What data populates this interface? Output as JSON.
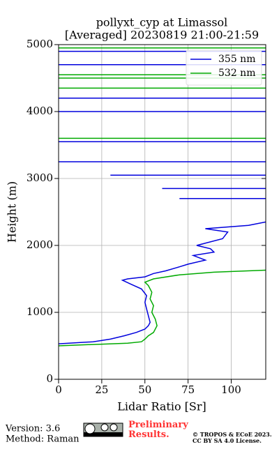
{
  "chart_data": {
    "type": "line",
    "title": "pollyxt_cyp at Limassol",
    "subtitle": "[Averaged] 20230819 21:00-21:59",
    "x_label": "Lidar Ratio [Sr]",
    "y_label": "Height (m)",
    "xlim": [
      0,
      120
    ],
    "xticks": [
      0,
      25,
      50,
      75,
      100
    ],
    "ylim": [
      0,
      5000
    ],
    "yticks": [
      0,
      1000,
      2000,
      3000,
      4000,
      5000
    ],
    "grid": true,
    "legend": "upper right",
    "series": [
      {
        "name": "355 nm",
        "color": "#0000dd",
        "x": [
          0,
          20,
          30,
          38,
          45,
          50,
          52,
          53,
          52,
          51,
          50,
          51,
          48,
          42,
          37,
          40,
          50,
          55,
          62,
          70,
          75,
          85,
          78,
          90,
          88,
          80,
          95,
          98,
          85,
          110,
          120,
          null,
          70,
          120,
          null,
          60,
          120,
          null,
          30,
          120,
          null,
          0,
          120,
          null,
          0,
          120,
          null,
          0,
          120,
          null,
          0,
          120,
          null,
          0,
          120,
          null,
          0,
          120
        ],
        "y": [
          530,
          560,
          600,
          650,
          700,
          750,
          800,
          850,
          950,
          1050,
          1150,
          1250,
          1350,
          1420,
          1480,
          1500,
          1530,
          1580,
          1620,
          1680,
          1720,
          1780,
          1850,
          1900,
          1950,
          2000,
          2100,
          2200,
          2250,
          2300,
          2350,
          null,
          2700,
          2700,
          null,
          2850,
          2850,
          null,
          3050,
          3050,
          null,
          3250,
          3250,
          null,
          3550,
          3550,
          null,
          4000,
          4000,
          null,
          4200,
          4200,
          null,
          4700,
          4700,
          null,
          4900,
          4900
        ]
      },
      {
        "name": "532 nm",
        "color": "#00aa00",
        "x": [
          0,
          20,
          40,
          48,
          50,
          52,
          55,
          57,
          56,
          54,
          55,
          53,
          54,
          52,
          50,
          55,
          70,
          90,
          120,
          null,
          0,
          120,
          null,
          0,
          120,
          null,
          0,
          120,
          null,
          0,
          120,
          null,
          0,
          120
        ],
        "y": [
          500,
          520,
          540,
          560,
          600,
          650,
          700,
          800,
          900,
          1000,
          1100,
          1200,
          1300,
          1400,
          1450,
          1500,
          1560,
          1600,
          1630,
          null,
          3600,
          3600,
          null,
          4350,
          4350,
          null,
          4500,
          4500,
          null,
          4550,
          4550,
          null,
          4950,
          4950
        ]
      }
    ]
  },
  "footer": {
    "version": "Version: 3.6",
    "method": "Method: Raman",
    "preliminary": "Preliminary Results.",
    "copyright": "© TROPOS & ECoE 2023.",
    "license": "CC BY SA 4.0 License."
  }
}
